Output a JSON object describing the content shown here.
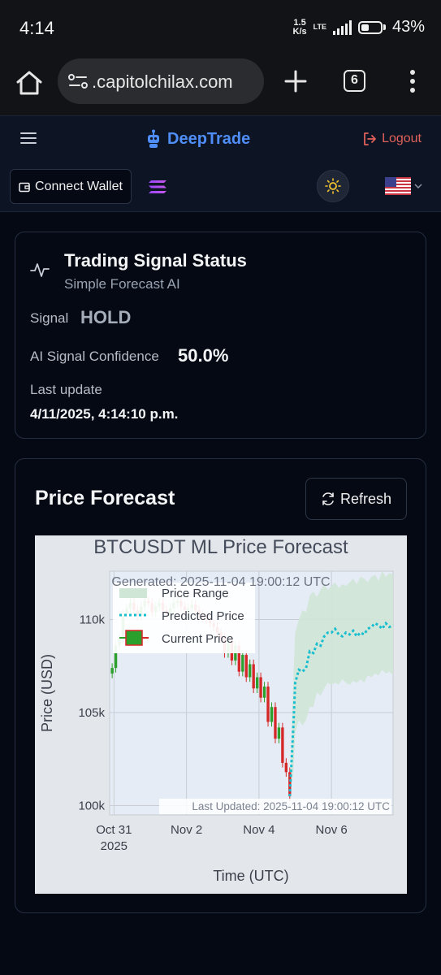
{
  "status_bar": {
    "time": "4:14",
    "net_speed_value": "1.5",
    "net_speed_unit": "K/s",
    "network_type": "LTE",
    "battery_percent": "43%",
    "battery_level": 0.43
  },
  "browser": {
    "url": ".capitolchilax.com",
    "tab_count": "6"
  },
  "app": {
    "brand": "DeepTrade",
    "logout_label": "Logout",
    "connect_wallet_label": "Connect Wallet"
  },
  "signal_card": {
    "title": "Trading Signal Status",
    "subtitle": "Simple Forecast AI",
    "signal_label": "Signal",
    "signal_value": "HOLD",
    "confidence_label": "AI Signal Confidence",
    "confidence_value": "50.0%",
    "last_update_label": "Last update",
    "last_update_value": "4/11/2025, 4:14:10 p.m."
  },
  "forecast_card": {
    "title": "Price Forecast",
    "refresh_label": "Refresh"
  },
  "chart_data": {
    "type": "line",
    "title": "BTCUSDT ML Price Forecast",
    "subtitle": "Generated: 2025-11-04 19:00:12 UTC",
    "annotation": "Last Updated: 2025-11-04 19:00:12 UTC",
    "xlabel": "Time (UTC)",
    "ylabel": "Price (USD)",
    "x_ticks": [
      {
        "label": "Oct 31",
        "sublabel": "2025",
        "x": 0
      },
      {
        "label": "Nov 2",
        "sublabel": "",
        "x": 2
      },
      {
        "label": "Nov 4",
        "sublabel": "",
        "x": 4
      },
      {
        "label": "Nov 6",
        "sublabel": "",
        "x": 6
      }
    ],
    "y_ticks": [
      {
        "label": "100k",
        "value": 100000
      },
      {
        "label": "105k",
        "value": 105000
      },
      {
        "label": "110k",
        "value": 110000
      }
    ],
    "xlim": [
      -0.12,
      7.7
    ],
    "ylim": [
      99500,
      112600
    ],
    "grid": true,
    "legend_position": "top-left",
    "legend": [
      "Price Range",
      "Predicted Price",
      "Current Price"
    ],
    "colors": {
      "up": "#2ca02c",
      "down": "#d62728",
      "predicted": "#17becf",
      "range": "#cfe6d6",
      "plot_bg": "#e5ecf6",
      "paper_bg": "#e3e6ea"
    },
    "series": [
      {
        "name": "Current Price",
        "type": "candlestick",
        "x": [
          -0.05,
          0.05,
          0.15,
          0.25,
          0.35,
          0.45,
          0.55,
          0.65,
          0.75,
          0.85,
          0.95,
          1.05,
          1.15,
          1.25,
          1.35,
          1.45,
          1.55,
          1.65,
          1.75,
          1.85,
          1.95,
          2.05,
          2.15,
          2.25,
          2.35,
          2.45,
          2.55,
          2.65,
          2.75,
          2.85,
          2.95,
          3.05,
          3.15,
          3.25,
          3.35,
          3.45,
          3.55,
          3.65,
          3.75,
          3.85,
          3.95,
          4.05,
          4.15,
          4.25,
          4.35,
          4.45,
          4.55,
          4.65,
          4.75,
          4.85
        ],
        "close": [
          107400,
          108600,
          109000,
          110300,
          110600,
          110900,
          110500,
          110200,
          110700,
          111000,
          110900,
          110400,
          110700,
          110900,
          110500,
          110300,
          110600,
          110900,
          111000,
          110700,
          110500,
          110600,
          110800,
          110500,
          110300,
          110100,
          110000,
          109800,
          109600,
          109300,
          109000,
          108200,
          108900,
          107800,
          108600,
          107200,
          108100,
          106900,
          107600,
          106300,
          106900,
          105800,
          106400,
          104500,
          105300,
          103600,
          104200,
          102300,
          101800,
          100500
        ]
      },
      {
        "name": "Predicted Price",
        "x": [
          4.85,
          4.95,
          5.0,
          5.1,
          5.2,
          5.3,
          5.4,
          5.5,
          5.6,
          5.7,
          5.8,
          5.9,
          6.0,
          6.1,
          6.2,
          6.3,
          6.4,
          6.5,
          6.6,
          6.7,
          6.8,
          6.9,
          7.0,
          7.1,
          7.2,
          7.3,
          7.4,
          7.5,
          7.6,
          7.7
        ],
        "values": [
          100500,
          104300,
          106600,
          107300,
          107200,
          107400,
          108300,
          108200,
          108700,
          108600,
          109100,
          109300,
          109300,
          109500,
          109200,
          109100,
          109300,
          109200,
          109400,
          109100,
          109300,
          109200,
          109500,
          109600,
          109800,
          109700,
          109500,
          109800,
          109600,
          109700
        ]
      },
      {
        "name": "Price Range",
        "x": [
          4.85,
          4.95,
          5.0,
          5.1,
          5.2,
          5.3,
          5.4,
          5.5,
          5.6,
          5.7,
          5.8,
          5.9,
          6.0,
          6.1,
          6.2,
          6.3,
          6.4,
          6.5,
          6.6,
          6.7,
          6.8,
          6.9,
          7.0,
          7.1,
          7.2,
          7.3,
          7.4,
          7.5,
          7.6,
          7.7
        ],
        "upper": [
          100500,
          107000,
          109300,
          110000,
          110500,
          110400,
          111300,
          111500,
          111200,
          111600,
          111900,
          111600,
          111800,
          112000,
          111700,
          111900,
          111800,
          112000,
          112200,
          111900,
          112300,
          112200,
          112000,
          112300,
          112400,
          112100,
          112600,
          112300,
          112500,
          112400
        ],
        "lower": [
          100500,
          101900,
          103900,
          104600,
          104300,
          104600,
          105300,
          105300,
          106100,
          105900,
          106300,
          106600,
          106500,
          106600,
          106500,
          106800,
          106600,
          106500,
          106700,
          106600,
          106800,
          106600,
          107000,
          106900,
          107100,
          107000,
          107300,
          107100,
          107200,
          107000
        ]
      }
    ]
  }
}
